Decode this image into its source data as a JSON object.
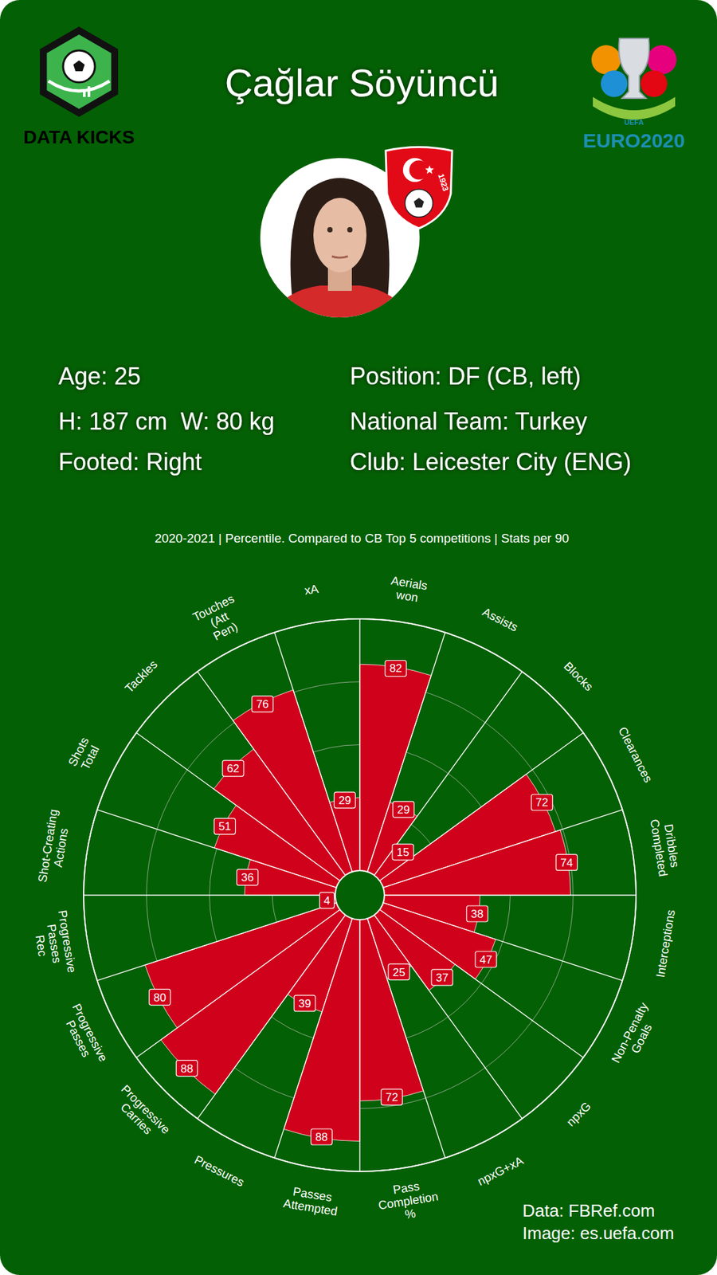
{
  "header": {
    "title": "Çağlar Söyüncü",
    "logo_text": "DATA KICKS",
    "event_texts": [
      "UEFA",
      "EURO2020"
    ],
    "crest_text": "1923"
  },
  "info": {
    "left": [
      "Age: 25",
      "H: 187 cm  W: 80 kg",
      "Footed: Right"
    ],
    "right": [
      "Position: DF (CB, left)",
      "National Team: Turkey",
      "Club: Leicester City (ENG)"
    ]
  },
  "footer": [
    "Data: FBRef.com",
    "Image: es.uefa.com"
  ],
  "chart_data": {
    "type": "polar_bar",
    "subtitle": "2020-2021 | Percentile. Compared to CB Top 5 competitions | Stats per 90",
    "categories": [
      "Aerials won",
      "Assists",
      "Blocks",
      "Clearances",
      "Dribbles Completed",
      "Interceptions",
      "Non-Penalty Goals",
      "npxG",
      "npxG+xA",
      "Pass Completion %",
      "Passes Attempted",
      "Pressures",
      "Progressive Carries",
      "Progressive Passes",
      "Progressive Passes Rec",
      "Shot-Creating Actions",
      "Shots Total",
      "Tackles",
      "Touches (Att Pen)",
      "xA"
    ],
    "values": [
      82,
      29,
      15,
      72,
      74,
      38,
      47,
      37,
      25,
      72,
      88,
      39,
      88,
      80,
      4,
      36,
      51,
      62,
      76,
      29
    ],
    "color": "#d0021b",
    "ylim": [
      0,
      100
    ],
    "yticks": [
      0,
      25,
      50,
      75,
      100
    ],
    "grid": true,
    "data_labels": true,
    "tick_labels": false
  }
}
